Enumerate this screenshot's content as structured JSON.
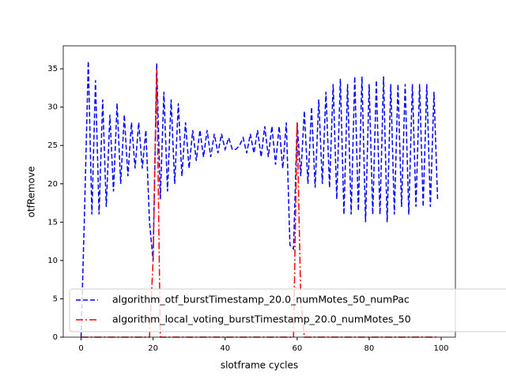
{
  "chart_data": {
    "type": "line",
    "xlabel": "slotframe cycles",
    "ylabel": "otfRemove",
    "x": [
      0,
      1,
      2,
      3,
      4,
      5,
      6,
      7,
      8,
      9,
      10,
      11,
      12,
      13,
      14,
      15,
      16,
      17,
      18,
      19,
      20,
      21,
      22,
      23,
      24,
      25,
      26,
      27,
      28,
      29,
      30,
      31,
      32,
      33,
      34,
      35,
      36,
      37,
      38,
      39,
      40,
      41,
      42,
      43,
      44,
      45,
      46,
      47,
      48,
      49,
      50,
      51,
      52,
      53,
      54,
      55,
      56,
      57,
      58,
      59,
      60,
      61,
      62,
      63,
      64,
      65,
      66,
      67,
      68,
      69,
      70,
      71,
      72,
      73,
      74,
      75,
      76,
      77,
      78,
      79,
      80,
      81,
      82,
      83,
      84,
      85,
      86,
      87,
      88,
      89,
      90,
      91,
      92,
      93,
      94,
      95,
      96,
      97,
      98,
      99
    ],
    "series": [
      {
        "name": "algorithm_otf_burstTimestamp_20.0_numMotes_50_numPac",
        "color": "#0000ff",
        "dash": "6,3",
        "values": [
          0,
          17,
          36,
          16,
          33.5,
          16,
          31,
          17,
          29,
          19,
          30.5,
          20,
          29,
          21,
          28,
          22,
          28,
          22,
          27,
          15,
          10,
          35.7,
          18,
          32,
          19,
          31,
          20,
          30.5,
          21,
          28,
          22,
          27,
          23,
          27,
          23.5,
          27,
          23.5,
          26.5,
          24,
          26.5,
          24.5,
          26,
          24.5,
          24.5,
          25,
          26,
          24,
          26.5,
          24,
          27,
          23.5,
          27.5,
          23.5,
          27.5,
          22.5,
          27.5,
          22,
          28,
          12,
          11.5,
          28,
          21,
          29.5,
          20,
          30,
          19.5,
          31,
          20,
          32,
          19.5,
          33,
          18,
          33.7,
          16,
          33,
          16,
          34,
          16.5,
          34,
          15,
          33,
          16,
          33.5,
          16,
          34,
          15,
          33,
          16,
          33,
          17,
          33,
          16,
          33,
          17,
          33,
          17,
          33,
          17,
          32,
          18
        ]
      },
      {
        "name": "algorithm_local_voting_burstTimestamp_20.0_numMotes_50",
        "color": "#ff0000",
        "dash": "9,3,2,3",
        "values": [
          0,
          0,
          0,
          0,
          0,
          0,
          0,
          0,
          0,
          0,
          0,
          0,
          0,
          0,
          0,
          0,
          0,
          0,
          0,
          0,
          10,
          35,
          0,
          0,
          0,
          0,
          0,
          0,
          0,
          0,
          0,
          0,
          0,
          0,
          0,
          0,
          0,
          0,
          0,
          0,
          0,
          0,
          0,
          0,
          0,
          0,
          0,
          0,
          0,
          0,
          0,
          0,
          0,
          0,
          0,
          0,
          0,
          0,
          0,
          0,
          28,
          5,
          0,
          0,
          0,
          0,
          0,
          0,
          0,
          0,
          0,
          0,
          0,
          0,
          0,
          0,
          0,
          0,
          0,
          0,
          0,
          0,
          0,
          0,
          0,
          0,
          0,
          0,
          0,
          0,
          0,
          0,
          0,
          0,
          0,
          0,
          0,
          0,
          0,
          0
        ]
      }
    ],
    "xlim": [
      -4.95,
      103.95
    ],
    "xticks": [
      0,
      20,
      40,
      60,
      80,
      100
    ],
    "ylim": [
      0,
      38
    ],
    "yticks": [
      0,
      5,
      10,
      15,
      20,
      25,
      30,
      35
    ],
    "legend": "lower left"
  }
}
